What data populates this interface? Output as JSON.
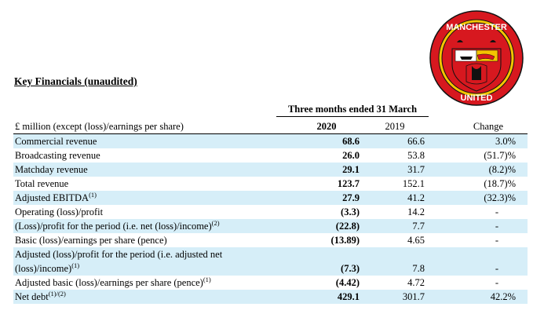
{
  "logo": {
    "text_top": "MANCHESTER",
    "text_bottom": "UNITED",
    "colors": {
      "red": "#d7181f",
      "yellow": "#f5c400",
      "black": "#111111"
    }
  },
  "title": "Key Financials (unaudited)",
  "period_header": "Three months ended 31 March",
  "columns": {
    "label": "£ million (except (loss)/earnings per share)",
    "y2020": "2020",
    "y2019": "2019",
    "change": "Change"
  },
  "rows": [
    {
      "label": "Commercial revenue",
      "sup": "",
      "y2020": "68.6",
      "y2019": "66.6",
      "change": "3.0%"
    },
    {
      "label": "Broadcasting revenue",
      "sup": "",
      "y2020": "26.0",
      "y2019": "53.8",
      "change": "(51.7)%"
    },
    {
      "label": "Matchday revenue",
      "sup": "",
      "y2020": "29.1",
      "y2019": "31.7",
      "change": "(8.2)%"
    },
    {
      "label": "Total revenue",
      "sup": "",
      "y2020": "123.7",
      "y2019": "152.1",
      "change": "(18.7)%"
    },
    {
      "label": "Adjusted EBITDA",
      "sup": "(1)",
      "y2020": "27.9",
      "y2019": "41.2",
      "change": "(32.3)%"
    },
    {
      "label": "Operating (loss)/profit",
      "sup": "",
      "y2020": "(3.3)",
      "y2019": "14.2",
      "change": "-"
    },
    {
      "label": "(Loss)/profit for the period (i.e. net (loss)/income)",
      "sup": "(2)",
      "y2020": "(22.8)",
      "y2019": "7.7",
      "change": "-"
    },
    {
      "label": "Basic (loss)/earnings per share (pence)",
      "sup": "",
      "y2020": "(13.89)",
      "y2019": "4.65",
      "change": "-"
    },
    {
      "label": "Adjusted (loss)/profit for the period (i.e. adjusted net (loss)/income)",
      "sup": "(1)",
      "y2020": "(7.3)",
      "y2019": "7.8",
      "change": "-"
    },
    {
      "label": "Adjusted basic (loss)/earnings per share (pence)",
      "sup": "(1)",
      "y2020": "(4.42)",
      "y2019": "4.72",
      "change": "-"
    },
    {
      "label": "Net debt",
      "sup": "(1)/(2)",
      "y2020": "429.1",
      "y2019": "301.7",
      "change": "42.2%"
    }
  ]
}
